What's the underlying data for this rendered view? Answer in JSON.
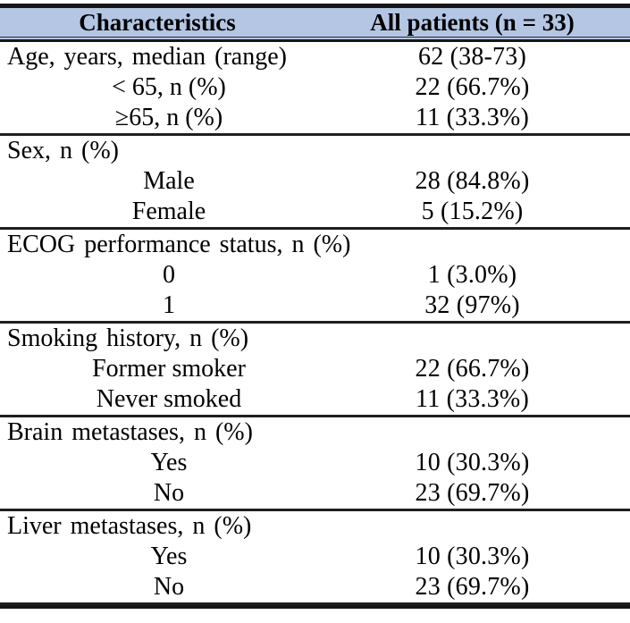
{
  "table": {
    "columns": [
      "Characteristics",
      "All patients (n = 33)"
    ],
    "colors": {
      "header_bg": "#b4c6e4",
      "rule_line": "#1a1a1a",
      "text": "#000000"
    },
    "sections": [
      {
        "name": "age",
        "rows": [
          {
            "label": "Age, years, median (range)",
            "value": "62 (38-73)"
          },
          {
            "label": "< 65, n (%)",
            "value": "22 (66.7%)"
          },
          {
            "label": "≥65, n (%)",
            "value": "11 (33.3%)"
          }
        ]
      },
      {
        "name": "sex",
        "rows": [
          {
            "label": "Sex, n (%)",
            "value": ""
          },
          {
            "label": "Male",
            "value": "28 (84.8%)"
          },
          {
            "label": "Female",
            "value": "5 (15.2%)"
          }
        ]
      },
      {
        "name": "ecog",
        "rows": [
          {
            "label": "ECOG performance status, n (%)",
            "value": ""
          },
          {
            "label": "0",
            "value": "1 (3.0%)"
          },
          {
            "label": "1",
            "value": "32 (97%)"
          }
        ]
      },
      {
        "name": "smoking",
        "rows": [
          {
            "label": "Smoking history, n (%)",
            "value": ""
          },
          {
            "label": "Former smoker",
            "value": "22 (66.7%)"
          },
          {
            "label": "Never smoked",
            "value": "11 (33.3%)"
          }
        ]
      },
      {
        "name": "brain-metastases",
        "rows": [
          {
            "label": "Brain metastases, n (%)",
            "value": ""
          },
          {
            "label": "Yes",
            "value": "10 (30.3%)"
          },
          {
            "label": "No",
            "value": "23 (69.7%)"
          }
        ]
      },
      {
        "name": "liver-metastases",
        "rows": [
          {
            "label": "Liver metastases, n (%)",
            "value": ""
          },
          {
            "label": "Yes",
            "value": "10 (30.3%)"
          },
          {
            "label": "No",
            "value": "23 (69.7%)"
          }
        ]
      }
    ]
  }
}
